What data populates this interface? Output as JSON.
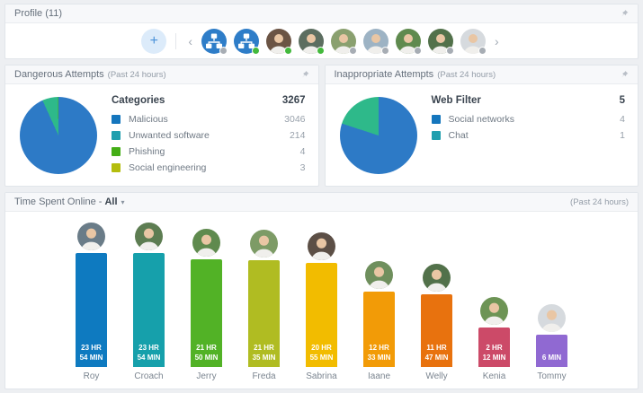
{
  "icons": {
    "plus": "+",
    "prev": "‹",
    "next": "›",
    "caret": "▾",
    "pin": "pin-icon",
    "group_avatar": "org-group-icon",
    "person_avatar": "person-photo"
  },
  "colors": {
    "online_dot": "#43b93c",
    "offline_dot": "#a7adb4",
    "group_avatar_bg": "#2e7dc8"
  },
  "profile": {
    "title": "Profile (11)",
    "avatars": [
      {
        "type": "group",
        "status": "offline"
      },
      {
        "type": "group",
        "status": "online"
      },
      {
        "type": "photo",
        "status": "online",
        "bg": "#6b5444"
      },
      {
        "type": "photo",
        "status": "online",
        "bg": "#5c6e60"
      },
      {
        "type": "photo",
        "status": "offline",
        "bg": "#8aa06f"
      },
      {
        "type": "photo",
        "status": "offline",
        "bg": "#9db3c4"
      },
      {
        "type": "photo",
        "status": "offline",
        "bg": "#5f8a4e"
      },
      {
        "type": "photo",
        "status": "offline",
        "bg": "#52714a"
      },
      {
        "type": "photo",
        "status": "offline",
        "bg": "#d6dade"
      }
    ]
  },
  "panels": {
    "dangerous": {
      "title": "Dangerous Attempts",
      "period": "(Past 24 hours)"
    },
    "inappropriate": {
      "title": "Inappropriate Attempts",
      "period": "(Past 24 hours)"
    },
    "time": {
      "title": "Time Spent Online -",
      "filter": "All",
      "period": "(Past 24 hours)"
    }
  },
  "time": {
    "people": [
      {
        "name": "Roy",
        "time": "23 HR\n54 MIN",
        "color": "#0e7ac0",
        "avatar_bg": "#6a7c88"
      },
      {
        "name": "Croach",
        "time": "23 HR\n54 MIN",
        "color": "#16a0ab",
        "avatar_bg": "#5d7d52"
      },
      {
        "name": "Jerry",
        "time": "21 HR\n50 MIN",
        "color": "#52b226",
        "avatar_bg": "#5f8a4e"
      },
      {
        "name": "Freda",
        "time": "21 HR\n35 MIN",
        "color": "#b0bc22",
        "avatar_bg": "#7d9b66"
      },
      {
        "name": "Sabrina",
        "time": "20 HR\n55 MIN",
        "color": "#f2bc00",
        "avatar_bg": "#5c4f46"
      },
      {
        "name": "Iaane",
        "time": "12 HR\n33 MIN",
        "color": "#f29b07",
        "avatar_bg": "#6f8f5d"
      },
      {
        "name": "Welly",
        "time": "11 HR\n47 MIN",
        "color": "#e8720e",
        "avatar_bg": "#52714a"
      },
      {
        "name": "Kenia",
        "time": "2 HR\n12 MIN",
        "color": "#cc4a68",
        "avatar_bg": "#6d9455"
      },
      {
        "name": "Tommy",
        "time": "6 MIN",
        "color": "#9069d2",
        "avatar_bg": "#d6dade"
      }
    ]
  },
  "chart_data": [
    {
      "type": "pie",
      "title": "Dangerous Attempts",
      "period": "Past 24 hours",
      "legend_title": "Categories",
      "total": 3267,
      "categories": [
        "Malicious",
        "Unwanted software",
        "Phishing",
        "Social engineering"
      ],
      "values": [
        3046,
        214,
        4,
        3
      ],
      "colors": [
        "#1576bd",
        "#219fae",
        "#44ae16",
        "#b4bd0e"
      ],
      "pie_colors": [
        "#2d7ac6",
        "#2eb98a",
        "#44ae16",
        "#b4bd0e"
      ],
      "legend_position": "right"
    },
    {
      "type": "pie",
      "title": "Inappropriate Attempts",
      "period": "Past 24 hours",
      "legend_title": "Web Filter",
      "total": 5,
      "categories": [
        "Social networks",
        "Chat"
      ],
      "values": [
        4,
        1
      ],
      "colors": [
        "#1576bd",
        "#219fae"
      ],
      "pie_colors": [
        "#2d7ac6",
        "#2eb98a"
      ],
      "legend_position": "right"
    },
    {
      "type": "bar",
      "title": "Time Spent Online - All",
      "period": "Past 24 hours",
      "categories": [
        "Roy",
        "Croach",
        "Jerry",
        "Freda",
        "Sabrina",
        "Iaane",
        "Welly",
        "Kenia",
        "Tommy"
      ],
      "values": [
        1434,
        1434,
        1310,
        1295,
        1255,
        753,
        707,
        132,
        6
      ],
      "unit": "minutes",
      "labels": [
        "23 HR 54 MIN",
        "23 HR 54 MIN",
        "21 HR 50 MIN",
        "21 HR 35 MIN",
        "20 HR 55 MIN",
        "12 HR 33 MIN",
        "11 HR 47 MIN",
        "2 HR 12 MIN",
        "6 MIN"
      ],
      "ylim": [
        0,
        1440
      ],
      "grid": false,
      "legend_position": "none"
    }
  ]
}
